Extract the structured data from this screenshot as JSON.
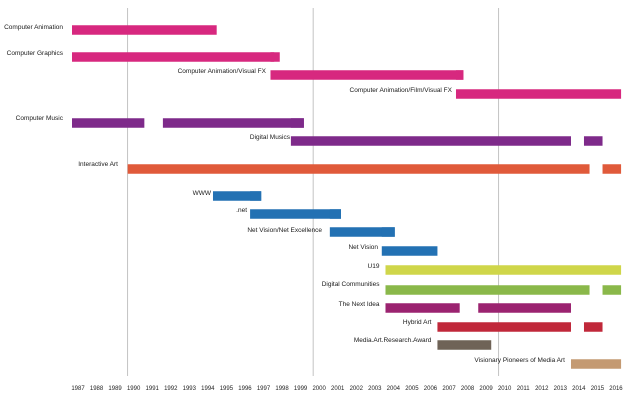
{
  "chart_data": {
    "type": "bar",
    "subtype": "timeline",
    "title": "",
    "xlabel": "",
    "ylabel": "",
    "x_ticks": [
      1987,
      1988,
      1989,
      1990,
      1991,
      1992,
      1993,
      1994,
      1995,
      1996,
      1997,
      1998,
      1999,
      2000,
      2001,
      2002,
      2003,
      2004,
      2005,
      2006,
      2007,
      2008,
      2009,
      2010,
      2011,
      2012,
      2013,
      2014,
      2015,
      2016
    ],
    "xlim": [
      1987,
      2016.6
    ],
    "gridlines_at": [
      1990,
      2000,
      2010
    ],
    "grid": true,
    "legend": "none",
    "categories": [
      {
        "label": "Computer Animation",
        "color": "#d7287f",
        "start": 1987,
        "end": 1994.8
      },
      {
        "label": "Computer Graphics",
        "color": "#d7287f",
        "start": 1987,
        "end": 1998.2
      },
      {
        "label": "Computer Animation/Visual FX",
        "color": "#d7287f",
        "start": 1997.7,
        "end": 2008.1
      },
      {
        "label": "Computer Animation/Film/Visual FX",
        "color": "#d7287f",
        "start": 2007.7,
        "end": 2016.6
      },
      {
        "label": "Computer Music",
        "color": "#7e2a8a",
        "start": 1987,
        "end": 1999.5
      },
      {
        "label": "Digital Musics",
        "color": "#7e2a8a",
        "start": 1998.8,
        "end": 2015.6
      },
      {
        "label": "Interactive Art",
        "color": "#e05a3a",
        "start": 1990,
        "end": 2016.6
      },
      {
        "label": "WWW",
        "color": "#2371b3",
        "start": 1994.6,
        "end": 1997.2
      },
      {
        "label": ".net",
        "color": "#2371b3",
        "start": 1996.6,
        "end": 2001.5
      },
      {
        "label": "Net Vision/Net Excellence",
        "color": "#2371b3",
        "start": 2000.9,
        "end": 2004.4
      },
      {
        "label": "Net Vision",
        "color": "#2371b3",
        "start": 2003.7,
        "end": 2006.7
      },
      {
        "label": "U19",
        "color": "#cfd64a",
        "start": 2003.9,
        "end": 2016.6
      },
      {
        "label": "Digital Communities",
        "color": "#8ab84a",
        "start": 2003.9,
        "end": 2016.6
      },
      {
        "label": "The Next Idea",
        "color": "#9b2370",
        "start": 2003.9,
        "end": 2013.9
      },
      {
        "label": "Hybrid Art",
        "color": "#c0283a",
        "start": 2006.7,
        "end": 2015.6
      },
      {
        "label": "Media.Art.Research.Award",
        "color": "#6f6357",
        "start": 2006.7,
        "end": 2009.6
      },
      {
        "label": "Visionary Pioneers of Media Art",
        "color": "#c49a72",
        "start": 2013.9,
        "end": 2016.6
      }
    ],
    "segments": [
      {
        "cat": 0,
        "start": 1987,
        "end": 1994.8
      },
      {
        "cat": 1,
        "start": 1987,
        "end": 1997.9
      },
      {
        "cat": 1,
        "start": 1997.7,
        "end": 1998.2
      },
      {
        "cat": 2,
        "start": 1997.7,
        "end": 2008.1
      },
      {
        "cat": 2,
        "start": 2007.7,
        "end": 2008.1
      },
      {
        "cat": 3,
        "start": 2007.7,
        "end": 2016.6
      },
      {
        "cat": 4,
        "start": 1987,
        "end": 1990.9
      },
      {
        "cat": 4,
        "start": 1991.9,
        "end": 1999.5
      },
      {
        "cat": 4,
        "start": 1998.8,
        "end": 1999.5
      },
      {
        "cat": 5,
        "start": 1998.8,
        "end": 2013.9
      },
      {
        "cat": 5,
        "start": 2014.6,
        "end": 2015.6
      },
      {
        "cat": 6,
        "start": 1990,
        "end": 2014.9
      },
      {
        "cat": 6,
        "start": 2015.6,
        "end": 2016.6
      },
      {
        "cat": 7,
        "start": 1994.6,
        "end": 1997.2
      },
      {
        "cat": 7,
        "start": 1996.6,
        "end": 1997.2
      },
      {
        "cat": 8,
        "start": 1996.6,
        "end": 2001.5
      },
      {
        "cat": 8,
        "start": 2000.9,
        "end": 2001.5
      },
      {
        "cat": 9,
        "start": 2000.9,
        "end": 2004.4
      },
      {
        "cat": 9,
        "start": 2003.7,
        "end": 2004.4
      },
      {
        "cat": 10,
        "start": 2003.7,
        "end": 2006.7
      },
      {
        "cat": 11,
        "start": 2003.9,
        "end": 2016.6
      },
      {
        "cat": 12,
        "start": 2003.9,
        "end": 2014.9
      },
      {
        "cat": 12,
        "start": 2015.6,
        "end": 2016.6
      },
      {
        "cat": 13,
        "start": 2003.9,
        "end": 2007.9
      },
      {
        "cat": 13,
        "start": 2008.9,
        "end": 2013.9
      },
      {
        "cat": 14,
        "start": 2006.7,
        "end": 2013.9
      },
      {
        "cat": 14,
        "start": 2014.6,
        "end": 2015.6
      },
      {
        "cat": 15,
        "start": 2006.7,
        "end": 2009.6
      },
      {
        "cat": 16,
        "start": 2013.9,
        "end": 2016.6
      }
    ]
  }
}
